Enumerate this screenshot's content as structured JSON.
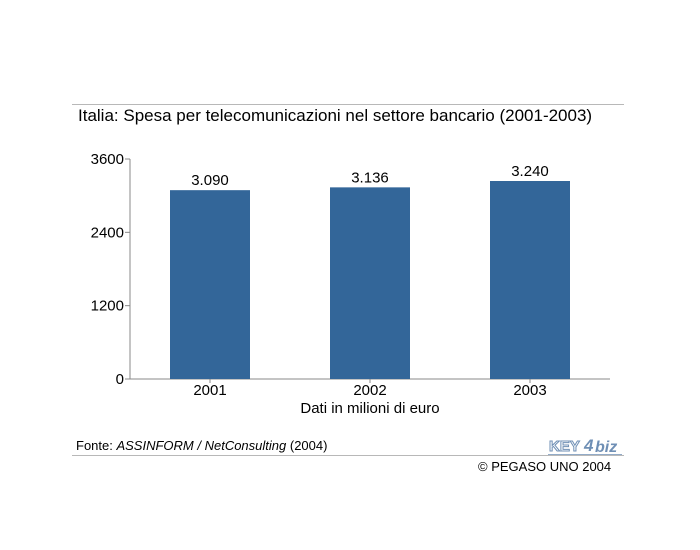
{
  "title": "Italia: Spesa per telecomunicazioni nel settore bancario (2001-2003)",
  "source": {
    "prefix": "Fonte: ",
    "name": "ASSINFORM / NetConsulting",
    "year": " (2004)"
  },
  "copyright": "© PEGASO UNO 2004",
  "logo": {
    "text_key": "KEY",
    "text_4": "4",
    "text_biz": "biz"
  },
  "colors": {
    "bar": "#336699",
    "axis": "#888888",
    "rule": "#b8b8b8",
    "logo": "#6f8fb5"
  },
  "chart_data": {
    "type": "bar",
    "title": "Italia: Spesa per telecomunicazioni nel settore bancario (2001-2003)",
    "categories": [
      "2001",
      "2002",
      "2003"
    ],
    "values": [
      3090,
      3136,
      3240
    ],
    "data_labels": [
      "3.090",
      "3.136",
      "3.240"
    ],
    "xlabel": "Dati in milioni di euro",
    "ylabel": "",
    "ylim": [
      0,
      3600
    ],
    "yticks": [
      0,
      1200,
      2400,
      3600
    ],
    "ytick_labels": [
      "0",
      "1200",
      "2400",
      "3600"
    ],
    "grid": false,
    "legend": "none"
  }
}
